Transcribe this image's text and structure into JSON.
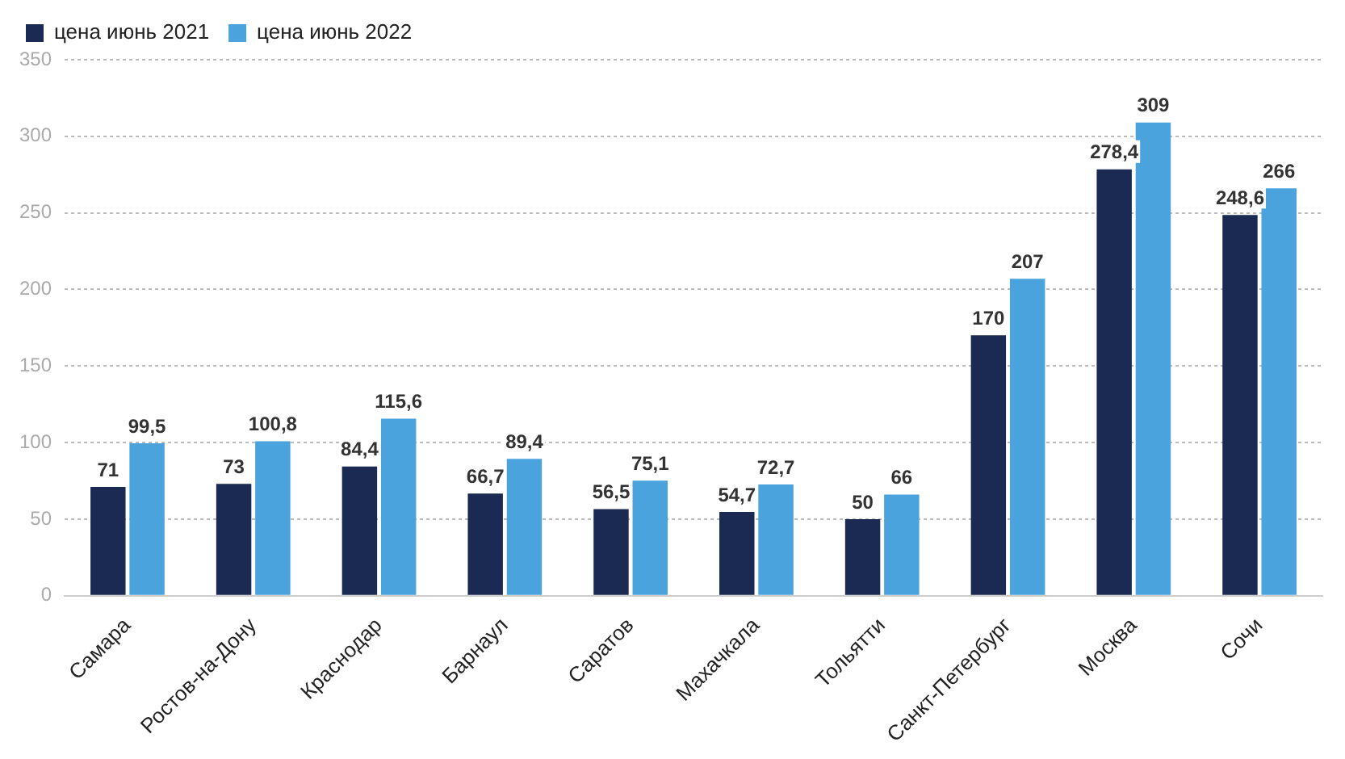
{
  "chart_data": {
    "type": "bar",
    "categories": [
      "Самара",
      "Ростов-на-Дону",
      "Краснодар",
      "Барнаул",
      "Саратов",
      "Махачкала",
      "Тольятти",
      "Санкт-Петербург",
      "Москва",
      "Сочи"
    ],
    "series": [
      {
        "name": "цена июнь 2021",
        "color": "#1b2a52",
        "values": [
          71,
          73,
          84.4,
          66.7,
          56.5,
          54.7,
          50,
          170,
          278.4,
          248.6
        ],
        "value_labels": [
          "71",
          "73",
          "84,4",
          "66,7",
          "56,5",
          "54,7",
          "50",
          "170",
          "278,4",
          "248,6"
        ]
      },
      {
        "name": "цена июнь 2022",
        "color": "#4aa3dc",
        "values": [
          99.5,
          100.8,
          115.6,
          89.4,
          75.1,
          72.7,
          66,
          207,
          309,
          266
        ],
        "value_labels": [
          "99,5",
          "100,8",
          "115,6",
          "89,4",
          "75,1",
          "72,7",
          "66",
          "207",
          "309",
          "266"
        ]
      }
    ],
    "ylim": [
      0,
      350
    ],
    "yticks": [
      0,
      50,
      100,
      150,
      200,
      250,
      300,
      350
    ],
    "grid": "y",
    "legend": "top left"
  }
}
